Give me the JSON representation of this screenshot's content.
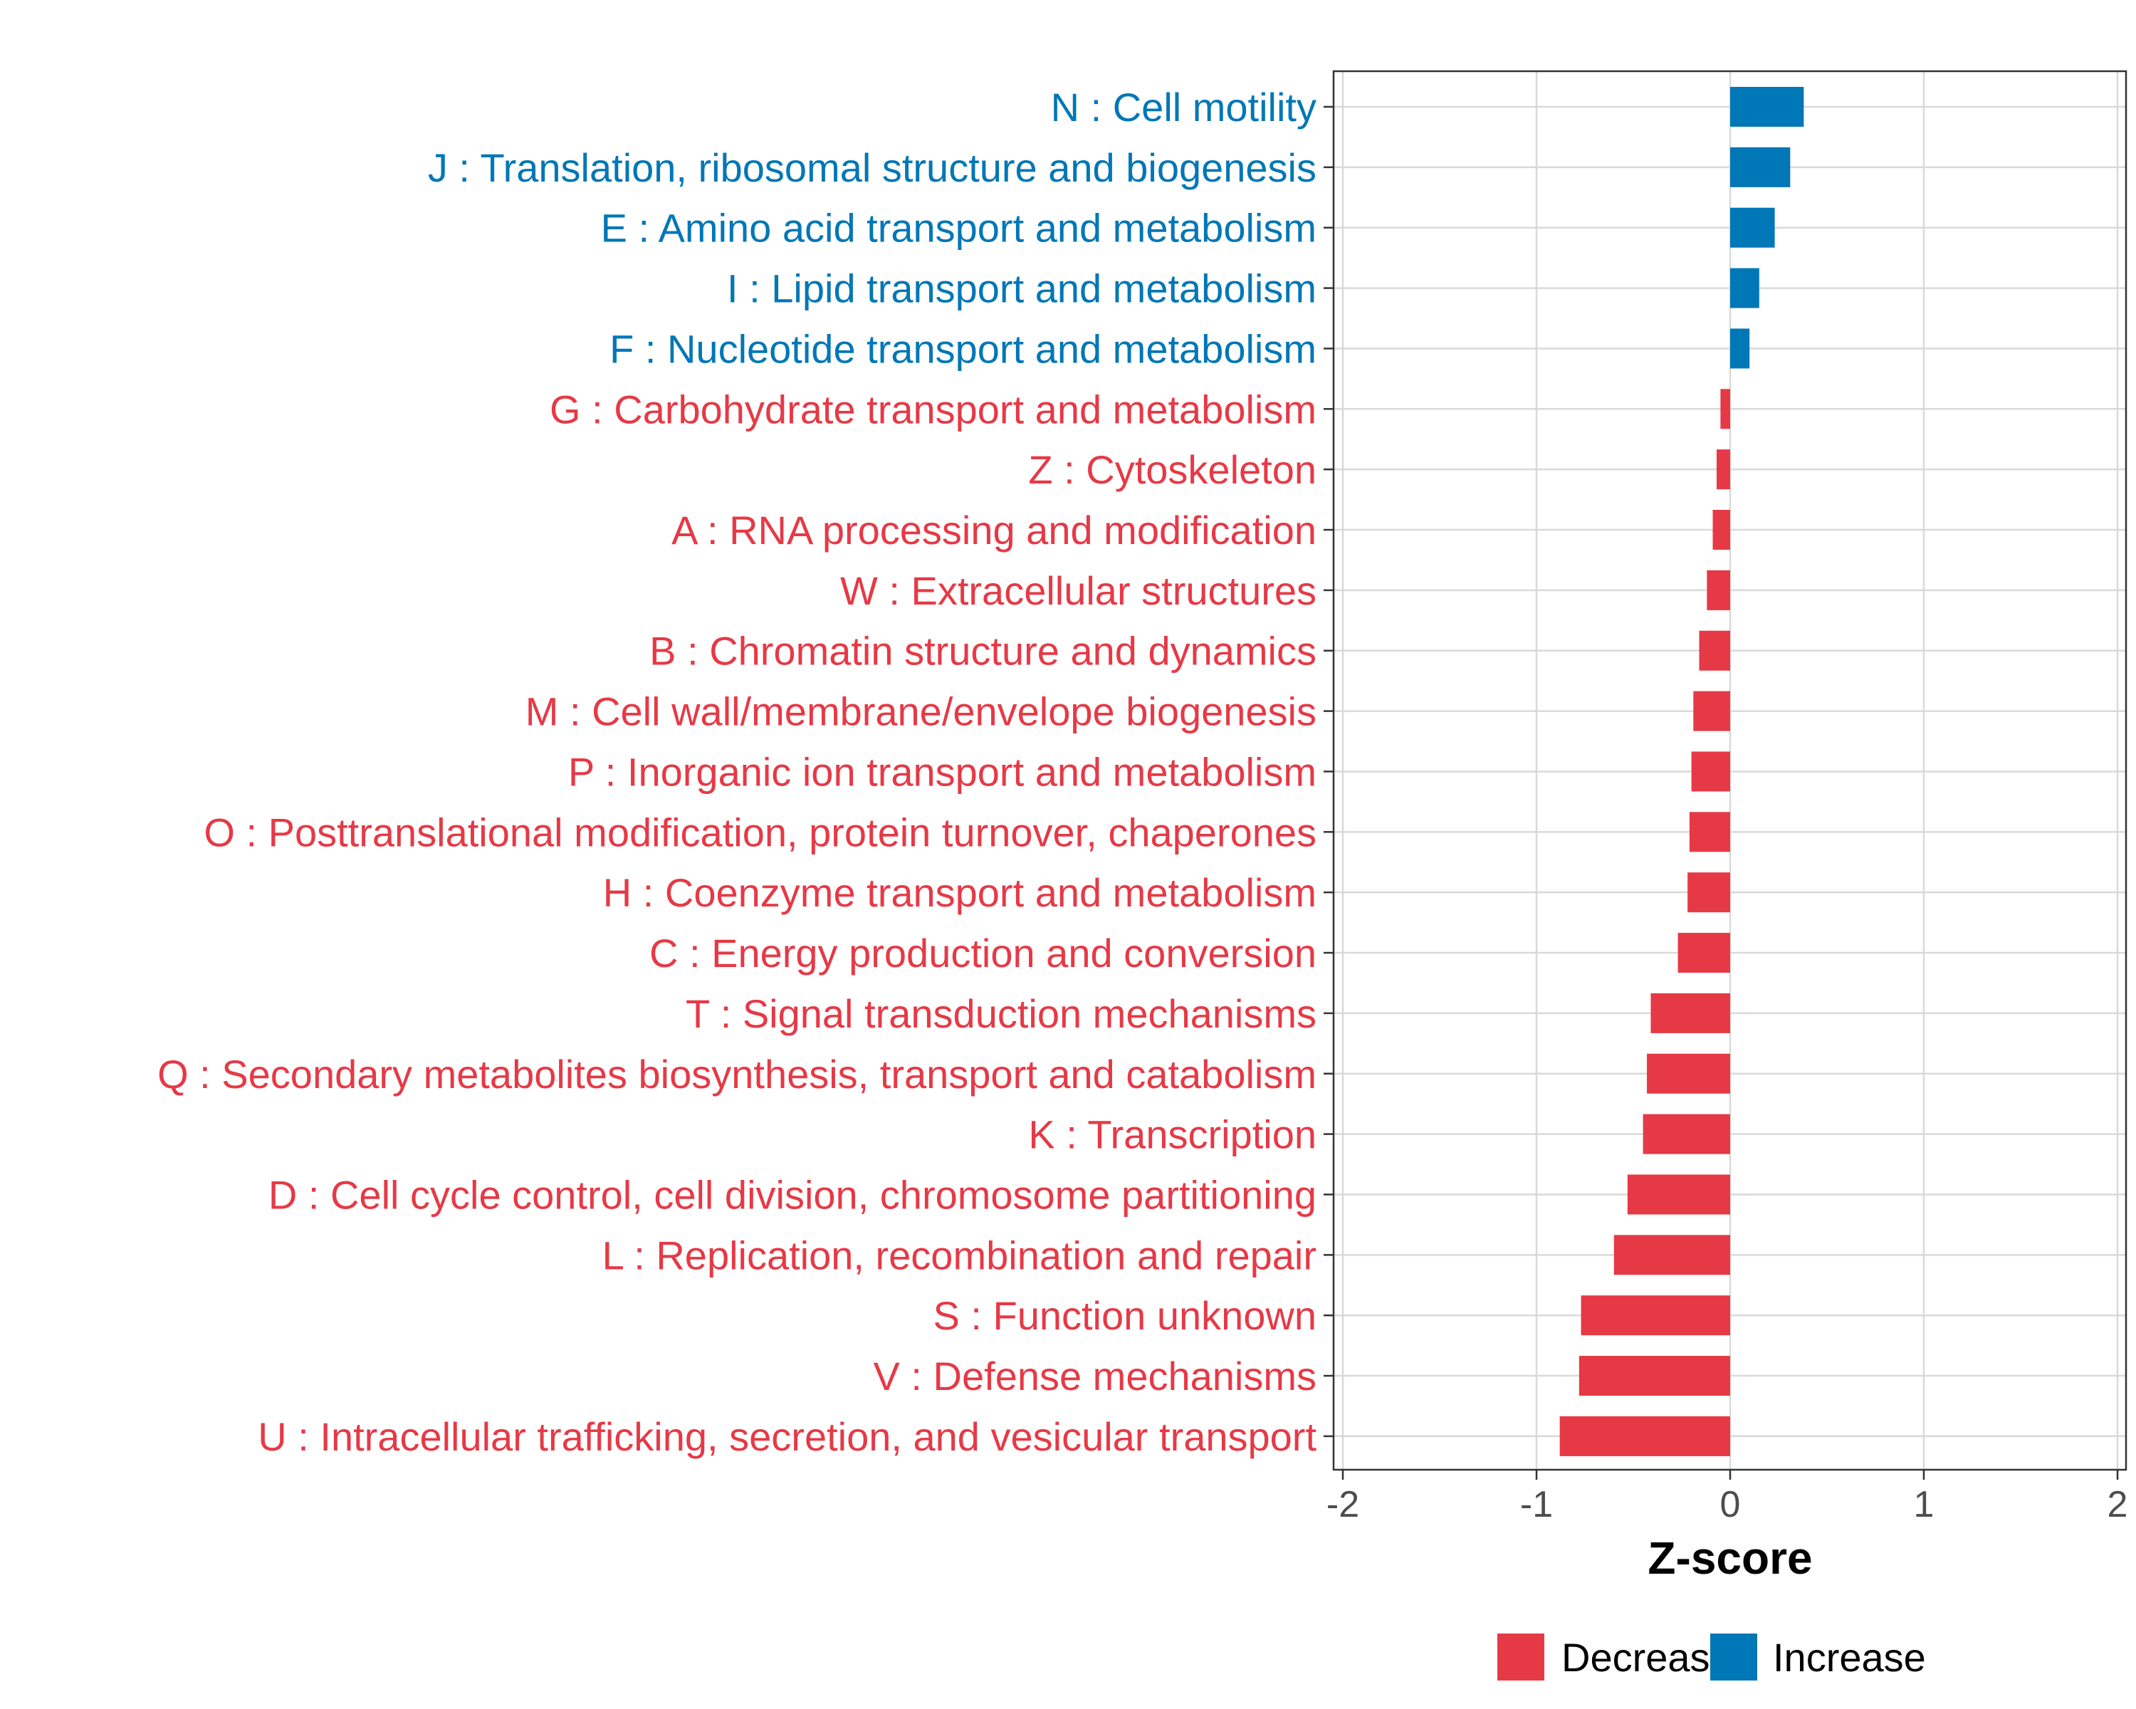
{
  "chart_data": {
    "type": "bar",
    "orientation": "horizontal",
    "xlabel": "Z-score",
    "xlim": [
      -2,
      2
    ],
    "xticks": [
      -2,
      -1,
      0,
      1,
      2
    ],
    "grid": true,
    "legend_position": "bottom",
    "colors": {
      "Decrease": "#e63946",
      "Increase": "#0077b6"
    },
    "legend": [
      {
        "name": "Decrease",
        "color": "#e63946"
      },
      {
        "name": "Increase",
        "color": "#0077b6"
      }
    ],
    "categories": [
      {
        "label": "N : Cell motility",
        "value": 0.38,
        "group": "Increase"
      },
      {
        "label": "J : Translation, ribosomal structure and biogenesis",
        "value": 0.31,
        "group": "Increase"
      },
      {
        "label": "E : Amino acid transport and metabolism",
        "value": 0.23,
        "group": "Increase"
      },
      {
        "label": "I : Lipid transport and metabolism",
        "value": 0.15,
        "group": "Increase"
      },
      {
        "label": "F : Nucleotide transport and metabolism",
        "value": 0.1,
        "group": "Increase"
      },
      {
        "label": "G : Carbohydrate transport and metabolism",
        "value": -0.05,
        "group": "Decrease"
      },
      {
        "label": "Z : Cytoskeleton",
        "value": -0.07,
        "group": "Decrease"
      },
      {
        "label": "A : RNA processing and modification",
        "value": -0.09,
        "group": "Decrease"
      },
      {
        "label": "W : Extracellular structures",
        "value": -0.12,
        "group": "Decrease"
      },
      {
        "label": "B : Chromatin structure and dynamics",
        "value": -0.16,
        "group": "Decrease"
      },
      {
        "label": "M : Cell wall/membrane/envelope biogenesis",
        "value": -0.19,
        "group": "Decrease"
      },
      {
        "label": "P : Inorganic ion transport and metabolism",
        "value": -0.2,
        "group": "Decrease"
      },
      {
        "label": "O : Posttranslational modification, protein turnover, chaperones",
        "value": -0.21,
        "group": "Decrease"
      },
      {
        "label": "H : Coenzyme transport and metabolism",
        "value": -0.22,
        "group": "Decrease"
      },
      {
        "label": "C : Energy production and conversion",
        "value": -0.27,
        "group": "Decrease"
      },
      {
        "label": "T : Signal transduction mechanisms",
        "value": -0.41,
        "group": "Decrease"
      },
      {
        "label": "Q : Secondary metabolites biosynthesis, transport and catabolism",
        "value": -0.43,
        "group": "Decrease"
      },
      {
        "label": "K : Transcription",
        "value": -0.45,
        "group": "Decrease"
      },
      {
        "label": "D : Cell cycle control, cell division, chromosome partitioning",
        "value": -0.53,
        "group": "Decrease"
      },
      {
        "label": "L : Replication, recombination and repair",
        "value": -0.6,
        "group": "Decrease"
      },
      {
        "label": "S : Function unknown",
        "value": -0.77,
        "group": "Decrease"
      },
      {
        "label": "V : Defense mechanisms",
        "value": -0.78,
        "group": "Decrease"
      },
      {
        "label": "U : Intracellular trafficking, secretion, and vesicular transport",
        "value": -0.88,
        "group": "Decrease"
      }
    ]
  }
}
